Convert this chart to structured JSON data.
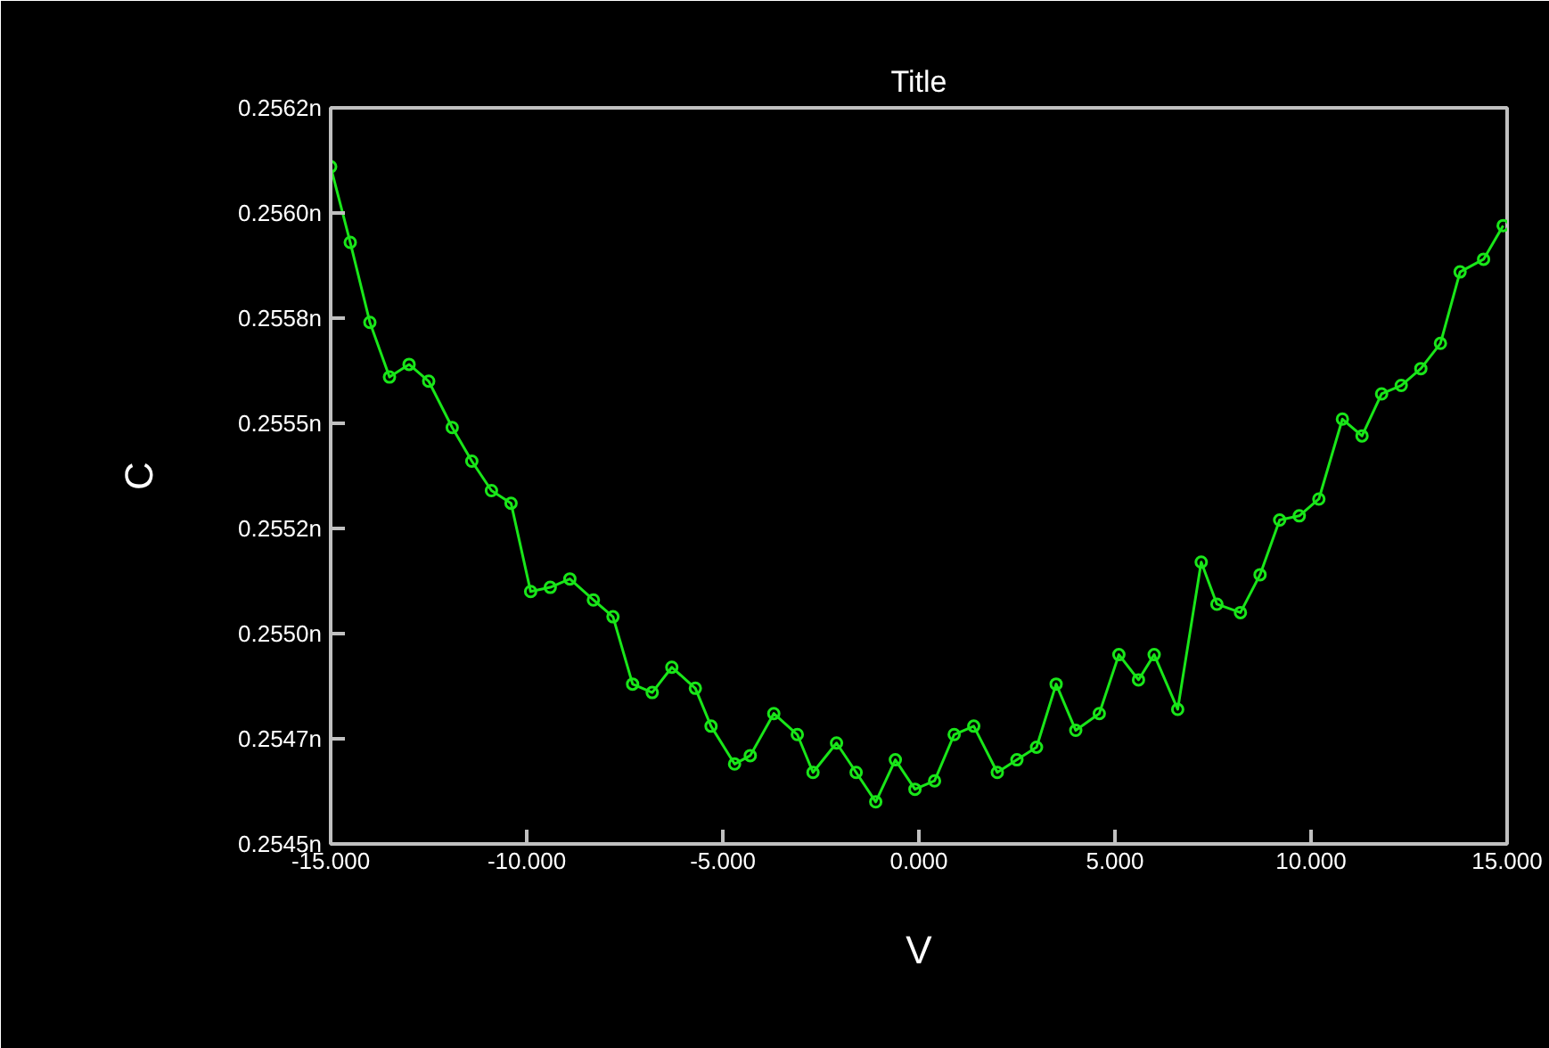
{
  "chart_data": {
    "type": "line",
    "title": "Title",
    "xlabel": "V",
    "ylabel": "C",
    "xlim": [
      -15,
      15
    ],
    "ylim": [
      0.2545,
      0.25625
    ],
    "xticks": [
      {
        "value": -15,
        "label": "-15.000"
      },
      {
        "value": -10,
        "label": "-10.000"
      },
      {
        "value": -5,
        "label": "-5.000"
      },
      {
        "value": 0,
        "label": "0.000"
      },
      {
        "value": 5,
        "label": "5.000"
      },
      {
        "value": 10,
        "label": "10.000"
      },
      {
        "value": 15,
        "label": "15.000"
      }
    ],
    "yticks": [
      {
        "value": 0.2545,
        "label": "0.2545n"
      },
      {
        "value": 0.25475,
        "label": "0.2547n"
      },
      {
        "value": 0.255,
        "label": "0.2550n"
      },
      {
        "value": 0.25525,
        "label": "0.2552n"
      },
      {
        "value": 0.2555,
        "label": "0.2555n"
      },
      {
        "value": 0.25575,
        "label": "0.2558n"
      },
      {
        "value": 0.256,
        "label": "0.2560n"
      },
      {
        "value": 0.25625,
        "label": "0.2562n"
      }
    ],
    "grid": false,
    "marker": "circle",
    "line_style": "solid",
    "series": [
      {
        "color": "#19e619",
        "x": [
          -15.0,
          -14.5,
          -14.0,
          -13.5,
          -13.0,
          -12.5,
          -11.9,
          -11.4,
          -10.9,
          -10.4,
          -9.9,
          -9.4,
          -8.9,
          -8.3,
          -7.8,
          -7.3,
          -6.8,
          -6.3,
          -5.7,
          -5.3,
          -4.7,
          -4.3,
          -3.7,
          -3.1,
          -2.7,
          -2.1,
          -1.6,
          -1.1,
          -0.6,
          -0.1,
          0.4,
          0.9,
          1.4,
          2.0,
          2.5,
          3.0,
          3.5,
          4.0,
          4.6,
          5.1,
          5.6,
          6.0,
          6.6,
          7.2,
          7.6,
          8.2,
          8.7,
          9.2,
          9.7,
          10.2,
          10.8,
          11.3,
          11.8,
          12.3,
          12.8,
          13.3,
          13.8,
          14.4,
          14.9
        ],
        "values": [
          0.25611,
          0.25593,
          0.25574,
          0.25561,
          0.25564,
          0.2556,
          0.25549,
          0.25541,
          0.25534,
          0.25531,
          0.2551,
          0.25511,
          0.25513,
          0.25508,
          0.25504,
          0.25488,
          0.25486,
          0.25492,
          0.25487,
          0.25478,
          0.25469,
          0.25471,
          0.25481,
          0.25476,
          0.25467,
          0.25474,
          0.25467,
          0.2546,
          0.2547,
          0.25463,
          0.25465,
          0.25476,
          0.25478,
          0.25467,
          0.2547,
          0.25473,
          0.25488,
          0.25477,
          0.25481,
          0.25495,
          0.25489,
          0.25495,
          0.25482,
          0.25517,
          0.25507,
          0.25505,
          0.25514,
          0.25527,
          0.25528,
          0.25532,
          0.25551,
          0.25547,
          0.25557,
          0.25559,
          0.25563,
          0.25569,
          0.25586,
          0.25589,
          0.25597
        ]
      }
    ]
  }
}
